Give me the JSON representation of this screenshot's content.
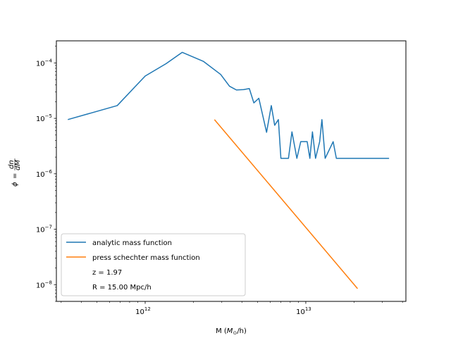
{
  "chart_data": {
    "type": "line",
    "title": "",
    "xlabel": "M (M_⊙/h)",
    "ylabel": "ϕ = dn/dM",
    "xscale": "log",
    "yscale": "log",
    "xlim": [
      280000000000.0,
      42000000000000.0
    ],
    "ylim": [
      5e-09,
      0.00025
    ],
    "x_tick_labels": [
      "10^12",
      "10^13"
    ],
    "y_tick_labels": [
      "10^-8",
      "10^-7",
      "10^-6",
      "10^-5",
      "10^-4"
    ],
    "grid": false,
    "legend": {
      "placement": "lower-left",
      "entries": [
        {
          "label": "analytic mass function",
          "color": "#1f77b4"
        },
        {
          "label": "press schechter mass function",
          "color": "#ff7f0e"
        },
        {
          "label": "z = 1.97",
          "color": ""
        },
        {
          "label": "R = 15.00 Mpc/h",
          "color": ""
        }
      ]
    },
    "series": [
      {
        "name": "analytic mass function",
        "color": "#1f77b4",
        "x": [
          330000000000.0,
          670000000000.0,
          1000000000000.0,
          1350000000000.0,
          1700000000000.0,
          2300000000000.0,
          2950000000000.0,
          3350000000000.0,
          3700000000000.0,
          4100000000000.0,
          4450000000000.0,
          4750000000000.0,
          5100000000000.0,
          5700000000000.0,
          6100000000000.0,
          6400000000000.0,
          6750000000000.0,
          7000000000000.0,
          7800000000000.0,
          8200000000000.0,
          8800000000000.0,
          9300000000000.0,
          10200000000000.0,
          10600000000000.0,
          11000000000000.0,
          11500000000000.0,
          12200000000000.0,
          12600000000000.0,
          13200000000000.0,
          14800000000000.0,
          15500000000000.0,
          33000000000000.0
        ],
        "y": [
          9.5e-06,
          1.7e-05,
          5.8e-05,
          9.7e-05,
          0.000155,
          0.000107,
          6.2e-05,
          3.8e-05,
          3.25e-05,
          3.3e-05,
          3.45e-05,
          1.9e-05,
          2.3e-05,
          5.6e-06,
          1.7e-05,
          7.5e-06,
          9.5e-06,
          1.9e-06,
          1.9e-06,
          5.7e-06,
          1.9e-06,
          3.8e-06,
          3.8e-06,
          1.9e-06,
          5.7e-06,
          1.9e-06,
          3.8e-06,
          9.5e-06,
          1.9e-06,
          3.8e-06,
          1.9e-06,
          1.9e-06
        ]
      },
      {
        "name": "press schechter mass function",
        "color": "#ff7f0e",
        "x": [
          2700000000000.0,
          21000000000000.0
        ],
        "y": [
          9.5e-06,
          8.5e-09
        ]
      }
    ]
  }
}
